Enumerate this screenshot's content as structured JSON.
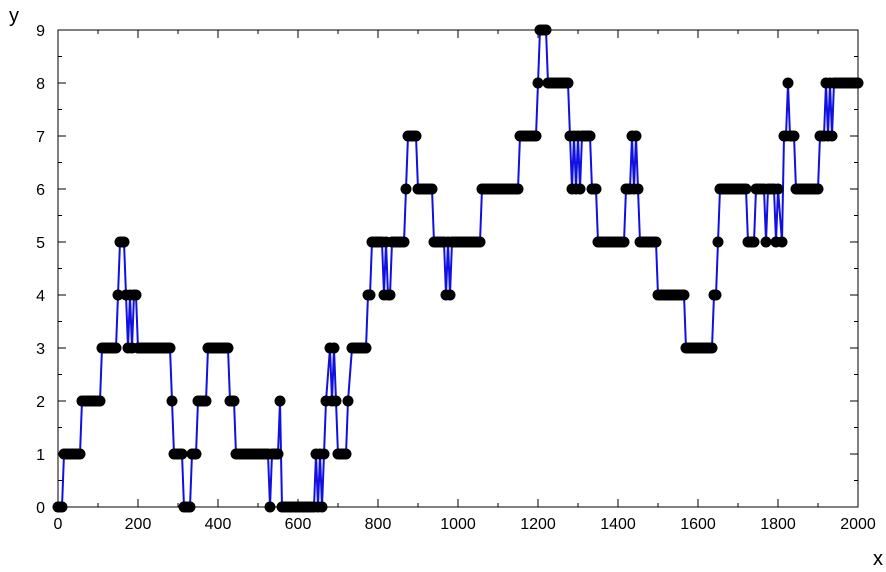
{
  "chart_data": {
    "type": "scatter",
    "title": "",
    "xlabel": "x",
    "ylabel": "y",
    "xlim": [
      0,
      2000
    ],
    "ylim": [
      0,
      9
    ],
    "x_ticks": [
      0,
      200,
      400,
      600,
      800,
      1000,
      1200,
      1400,
      1600,
      1800,
      2000
    ],
    "y_ticks": [
      0,
      1,
      2,
      3,
      4,
      5,
      6,
      7,
      8,
      9
    ],
    "grid": false,
    "legend": "none",
    "colors": {
      "line": "#1010e0",
      "marker": "#000000",
      "axis": "#000000"
    },
    "series": [
      {
        "style": "line+markers",
        "points": [
          [
            0,
            0
          ],
          [
            10,
            0
          ],
          [
            15,
            1
          ],
          [
            55,
            1
          ],
          [
            60,
            2
          ],
          [
            105,
            2
          ],
          [
            110,
            3
          ],
          [
            145,
            3
          ],
          [
            150,
            4
          ],
          [
            155,
            5
          ],
          [
            165,
            5
          ],
          [
            170,
            4
          ],
          [
            175,
            3
          ],
          [
            180,
            4
          ],
          [
            185,
            3
          ],
          [
            190,
            4
          ],
          [
            195,
            4
          ],
          [
            200,
            3
          ],
          [
            280,
            3
          ],
          [
            285,
            2
          ],
          [
            290,
            1
          ],
          [
            310,
            1
          ],
          [
            315,
            0
          ],
          [
            330,
            0
          ],
          [
            335,
            1
          ],
          [
            345,
            1
          ],
          [
            350,
            2
          ],
          [
            370,
            2
          ],
          [
            375,
            3
          ],
          [
            425,
            3
          ],
          [
            430,
            2
          ],
          [
            440,
            2
          ],
          [
            445,
            1
          ],
          [
            525,
            1
          ],
          [
            530,
            0
          ],
          [
            535,
            1
          ],
          [
            550,
            1
          ],
          [
            555,
            2
          ],
          [
            560,
            0
          ],
          [
            640,
            0
          ],
          [
            645,
            1
          ],
          [
            650,
            0
          ],
          [
            655,
            1
          ],
          [
            660,
            0
          ],
          [
            665,
            1
          ],
          [
            670,
            2
          ],
          [
            680,
            3
          ],
          [
            685,
            2
          ],
          [
            690,
            3
          ],
          [
            695,
            2
          ],
          [
            700,
            1
          ],
          [
            720,
            1
          ],
          [
            725,
            2
          ],
          [
            735,
            3
          ],
          [
            770,
            3
          ],
          [
            775,
            4
          ],
          [
            780,
            4
          ],
          [
            785,
            5
          ],
          [
            810,
            5
          ],
          [
            815,
            4
          ],
          [
            820,
            5
          ],
          [
            825,
            4
          ],
          [
            830,
            4
          ],
          [
            835,
            5
          ],
          [
            865,
            5
          ],
          [
            870,
            6
          ],
          [
            875,
            7
          ],
          [
            895,
            7
          ],
          [
            900,
            6
          ],
          [
            935,
            6
          ],
          [
            940,
            5
          ],
          [
            965,
            5
          ],
          [
            970,
            4
          ],
          [
            975,
            5
          ],
          [
            980,
            4
          ],
          [
            985,
            5
          ],
          [
            1055,
            5
          ],
          [
            1060,
            6
          ],
          [
            1150,
            6
          ],
          [
            1155,
            7
          ],
          [
            1195,
            7
          ],
          [
            1200,
            8
          ],
          [
            1205,
            9
          ],
          [
            1220,
            9
          ],
          [
            1225,
            8
          ],
          [
            1275,
            8
          ],
          [
            1280,
            7
          ],
          [
            1285,
            6
          ],
          [
            1290,
            7
          ],
          [
            1295,
            6
          ],
          [
            1300,
            7
          ],
          [
            1305,
            6
          ],
          [
            1310,
            7
          ],
          [
            1330,
            7
          ],
          [
            1335,
            6
          ],
          [
            1345,
            6
          ],
          [
            1350,
            5
          ],
          [
            1415,
            5
          ],
          [
            1420,
            6
          ],
          [
            1430,
            6
          ],
          [
            1435,
            7
          ],
          [
            1440,
            6
          ],
          [
            1445,
            7
          ],
          [
            1450,
            6
          ],
          [
            1455,
            5
          ],
          [
            1495,
            5
          ],
          [
            1500,
            4
          ],
          [
            1565,
            4
          ],
          [
            1570,
            3
          ],
          [
            1635,
            3
          ],
          [
            1640,
            4
          ],
          [
            1645,
            4
          ],
          [
            1650,
            5
          ],
          [
            1655,
            6
          ],
          [
            1720,
            6
          ],
          [
            1725,
            5
          ],
          [
            1740,
            5
          ],
          [
            1745,
            6
          ],
          [
            1765,
            6
          ],
          [
            1770,
            5
          ],
          [
            1775,
            6
          ],
          [
            1790,
            6
          ],
          [
            1795,
            5
          ],
          [
            1800,
            6
          ],
          [
            1810,
            5
          ],
          [
            1815,
            7
          ],
          [
            1820,
            7
          ],
          [
            1825,
            8
          ],
          [
            1830,
            7
          ],
          [
            1840,
            7
          ],
          [
            1845,
            6
          ],
          [
            1900,
            6
          ],
          [
            1905,
            7
          ],
          [
            1915,
            7
          ],
          [
            1920,
            8
          ],
          [
            1925,
            7
          ],
          [
            1930,
            8
          ],
          [
            1935,
            7
          ],
          [
            1940,
            8
          ],
          [
            2000,
            8
          ]
        ]
      }
    ]
  }
}
